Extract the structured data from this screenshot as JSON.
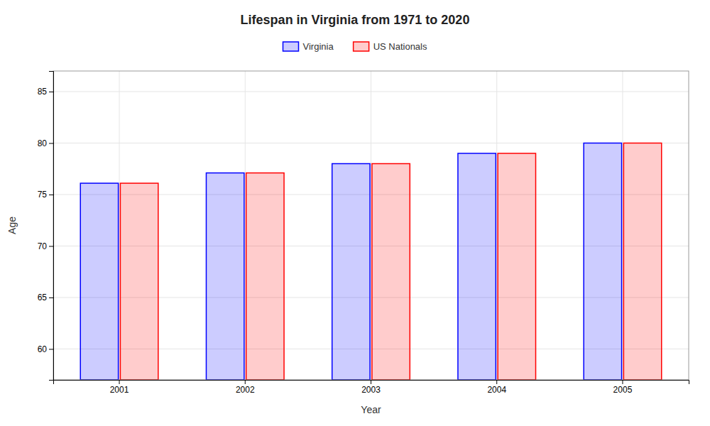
{
  "chart_data": {
    "type": "bar",
    "title": "Lifespan in Virginia from 1971 to 2020",
    "xlabel": "Year",
    "ylabel": "Age",
    "categories": [
      "2001",
      "2002",
      "2003",
      "2004",
      "2005"
    ],
    "series": [
      {
        "name": "Virginia",
        "color": "#0000ff",
        "values": [
          76.1,
          77.1,
          78.0,
          79.0,
          80.0
        ]
      },
      {
        "name": "US Nationals",
        "color": "#ff0000",
        "values": [
          76.1,
          77.1,
          78.0,
          79.0,
          80.0
        ]
      }
    ],
    "ylim": [
      57,
      87
    ],
    "yticks": [
      60,
      65,
      70,
      75,
      80,
      85
    ],
    "grid": true,
    "legend": "top"
  }
}
